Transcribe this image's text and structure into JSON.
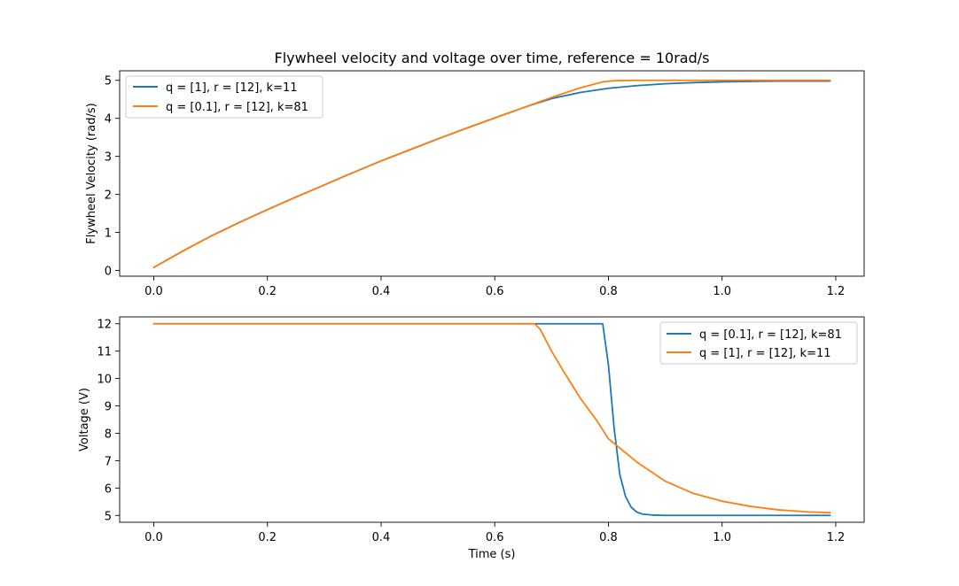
{
  "chart_data": [
    {
      "type": "line",
      "title": "Flywheel velocity and voltage over time, reference = 10rad/s",
      "xlabel": "",
      "ylabel": "Flywheel Velocity (rad/s)",
      "xlim": [
        -0.06,
        1.25
      ],
      "ylim": [
        -0.15,
        5.25
      ],
      "xticks": [
        "0.0",
        "0.2",
        "0.4",
        "0.6",
        "0.8",
        "1.0",
        "1.2"
      ],
      "yticks": [
        "0",
        "1",
        "2",
        "3",
        "4",
        "5"
      ],
      "grid": false,
      "legend_position": "upper-left",
      "series": [
        {
          "name": "q = [1], r = [12], k=11",
          "color": "#1f77b4",
          "x": [
            0.0,
            0.05,
            0.1,
            0.15,
            0.2,
            0.25,
            0.3,
            0.35,
            0.4,
            0.45,
            0.5,
            0.55,
            0.6,
            0.65,
            0.67,
            0.7,
            0.75,
            0.8,
            0.85,
            0.9,
            0.95,
            1.0,
            1.05,
            1.1,
            1.15,
            1.19
          ],
          "y": [
            0.08,
            0.5,
            0.9,
            1.26,
            1.6,
            1.93,
            2.25,
            2.57,
            2.88,
            3.17,
            3.46,
            3.74,
            4.01,
            4.28,
            4.38,
            4.52,
            4.68,
            4.79,
            4.86,
            4.91,
            4.94,
            4.96,
            4.97,
            4.98,
            4.98,
            4.98
          ]
        },
        {
          "name": "q = [0.1], r = [12], k=81",
          "color": "#ff7f0e",
          "x": [
            0.0,
            0.05,
            0.1,
            0.15,
            0.2,
            0.25,
            0.3,
            0.35,
            0.4,
            0.45,
            0.5,
            0.55,
            0.6,
            0.65,
            0.7,
            0.75,
            0.79,
            0.81,
            0.85,
            0.9,
            1.0,
            1.1,
            1.19
          ],
          "y": [
            0.08,
            0.5,
            0.9,
            1.26,
            1.6,
            1.93,
            2.25,
            2.57,
            2.88,
            3.17,
            3.46,
            3.74,
            4.01,
            4.28,
            4.55,
            4.8,
            4.96,
            4.99,
            5.0,
            5.0,
            5.0,
            5.0,
            5.0
          ]
        }
      ]
    },
    {
      "type": "line",
      "title": "",
      "xlabel": "Time (s)",
      "ylabel": "Voltage (V)",
      "xlim": [
        -0.06,
        1.25
      ],
      "ylim": [
        4.75,
        12.25
      ],
      "xticks": [
        "0.0",
        "0.2",
        "0.4",
        "0.6",
        "0.8",
        "1.0",
        "1.2"
      ],
      "yticks": [
        "5",
        "6",
        "7",
        "8",
        "9",
        "10",
        "11",
        "12"
      ],
      "grid": false,
      "legend_position": "upper-right",
      "series": [
        {
          "name": "q = [0.1], r = [12], k=81",
          "color": "#1f77b4",
          "x": [
            0.0,
            0.6,
            0.79,
            0.8,
            0.81,
            0.82,
            0.83,
            0.84,
            0.85,
            0.86,
            0.88,
            0.9,
            1.0,
            1.1,
            1.19
          ],
          "y": [
            12.0,
            12.0,
            12.0,
            10.5,
            8.2,
            6.5,
            5.7,
            5.3,
            5.12,
            5.05,
            5.01,
            5.0,
            5.0,
            5.0,
            5.0
          ]
        },
        {
          "name": "q = [1], r = [12], k=11",
          "color": "#ff7f0e",
          "x": [
            0.0,
            0.6,
            0.67,
            0.68,
            0.7,
            0.72,
            0.75,
            0.78,
            0.8,
            0.85,
            0.9,
            0.95,
            1.0,
            1.05,
            1.1,
            1.15,
            1.19
          ],
          "y": [
            12.0,
            12.0,
            12.0,
            11.8,
            11.0,
            10.3,
            9.3,
            8.45,
            7.8,
            6.95,
            6.25,
            5.8,
            5.52,
            5.33,
            5.2,
            5.13,
            5.1
          ]
        }
      ]
    }
  ]
}
